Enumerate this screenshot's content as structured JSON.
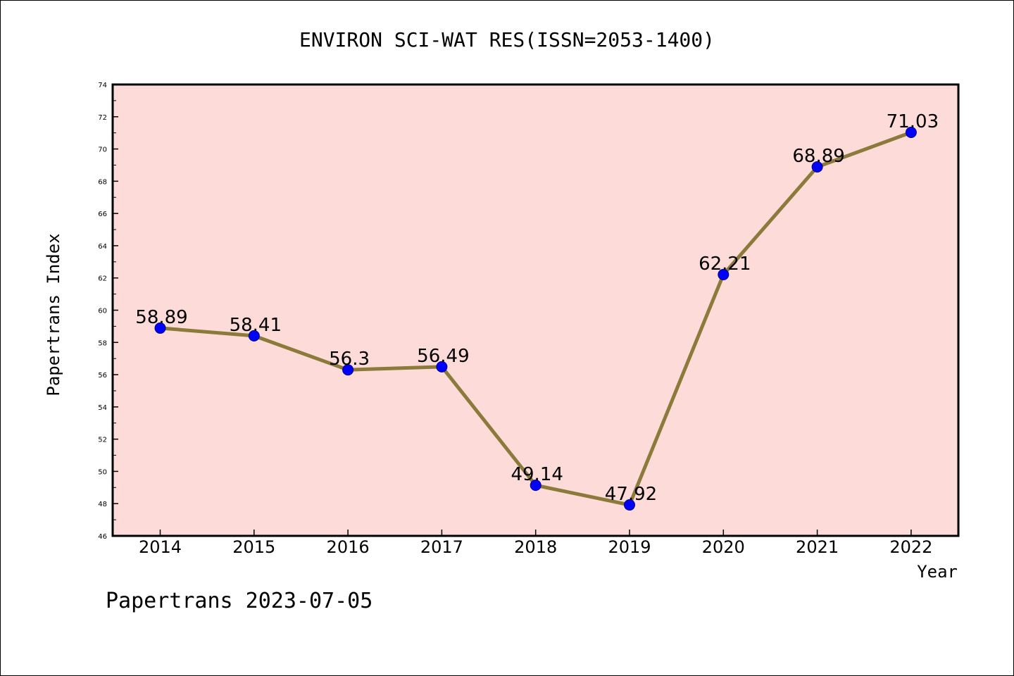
{
  "chart_data": {
    "type": "line",
    "title": "ENVIRON SCI-WAT RES(ISSN=2053-1400)",
    "xlabel": "Year",
    "ylabel": "Papertrans Index",
    "footer": "Papertrans 2023-07-05",
    "categories": [
      "2014",
      "2015",
      "2016",
      "2017",
      "2018",
      "2019",
      "2020",
      "2021",
      "2022"
    ],
    "series": [
      {
        "values": [
          58.89,
          58.41,
          56.3,
          56.49,
          49.14,
          47.92,
          62.21,
          68.89,
          71.03
        ],
        "labels": [
          "58.89",
          "58.41",
          "56.3",
          "56.49",
          "49.14",
          "47.92",
          "62.21",
          "68.89",
          "71.03"
        ]
      }
    ],
    "ylim": [
      46,
      74
    ],
    "yticks": [
      "46",
      "48",
      "50",
      "52",
      "54",
      "56",
      "58",
      "60",
      "62",
      "64",
      "66",
      "68",
      "70",
      "72",
      "74"
    ],
    "grid": false,
    "colors": {
      "plot_background": "#fddbd9",
      "line": "#8b7a3a",
      "marker": "#0000ff"
    }
  }
}
